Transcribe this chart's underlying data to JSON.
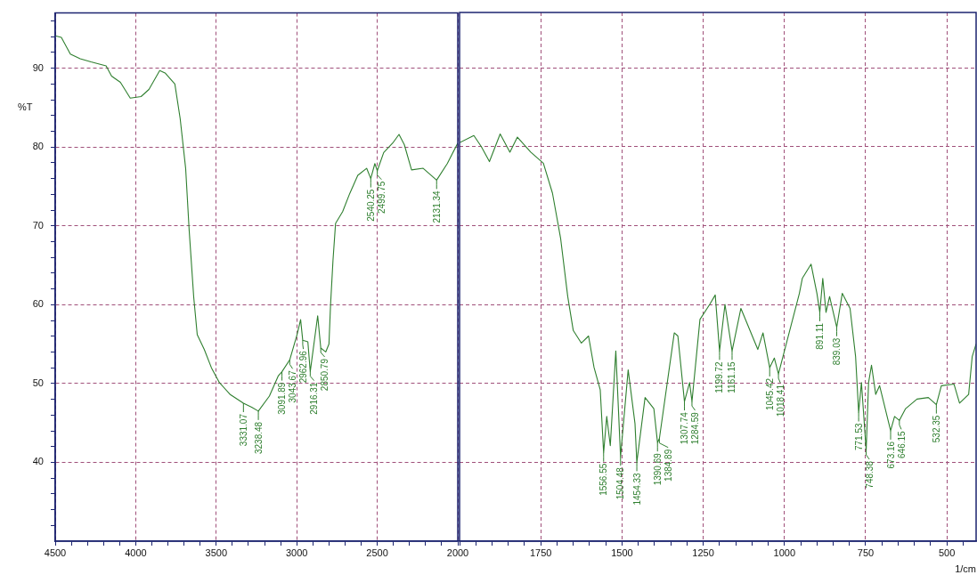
{
  "chart_data": [
    {
      "type": "line",
      "ylabel": "%T",
      "xlim": [
        4500,
        2000
      ],
      "ylim": [
        30,
        97
      ],
      "xticks": [
        4500,
        {
          "value": 4400,
          "label": null
        },
        {
          "value": 4300,
          "label": null
        },
        {
          "value": 4200,
          "label": null
        },
        {
          "value": 4100,
          "label": null
        },
        4000,
        {
          "value": 3900,
          "label": null
        },
        {
          "value": 3800,
          "label": null
        },
        {
          "value": 3700,
          "label": null
        },
        {
          "value": 3600,
          "label": null
        },
        3500,
        {
          "value": 3400,
          "label": null
        },
        {
          "value": 3300,
          "label": null
        },
        {
          "value": 3200,
          "label": null
        },
        {
          "value": 3100,
          "label": null
        },
        3000,
        {
          "value": 2900,
          "label": null
        },
        {
          "value": 2800,
          "label": null
        },
        {
          "value": 2700,
          "label": null
        },
        {
          "value": 2600,
          "label": null
        },
        2500,
        {
          "value": 2400,
          "label": null
        },
        {
          "value": 2300,
          "label": null
        },
        {
          "value": 2200,
          "label": null
        },
        {
          "value": 2100,
          "label": null
        },
        2000
      ],
      "yticks": [
        {
          "value": 32,
          "label": null
        },
        {
          "value": 34,
          "label": null
        },
        {
          "value": 36,
          "label": null
        },
        {
          "value": 38,
          "label": null
        },
        40,
        {
          "value": 42,
          "label": null
        },
        {
          "value": 44,
          "label": null
        },
        {
          "value": 46,
          "label": null
        },
        {
          "value": 48,
          "label": null
        },
        50,
        {
          "value": 52,
          "label": null
        },
        {
          "value": 54,
          "label": null
        },
        {
          "value": 56,
          "label": null
        },
        {
          "value": 58,
          "label": null
        },
        60,
        {
          "value": 62,
          "label": null
        },
        {
          "value": 64,
          "label": null
        },
        {
          "value": 66,
          "label": null
        },
        {
          "value": 68,
          "label": null
        },
        70,
        {
          "value": 72,
          "label": null
        },
        {
          "value": 74,
          "label": null
        },
        {
          "value": 76,
          "label": null
        },
        {
          "value": 78,
          "label": null
        },
        80,
        {
          "value": 82,
          "label": null
        },
        {
          "value": 84,
          "label": null
        },
        {
          "value": 86,
          "label": null
        },
        {
          "value": 88,
          "label": null
        },
        90,
        {
          "value": 92,
          "label": null
        },
        {
          "value": 94,
          "label": null
        },
        {
          "value": 96,
          "label": null
        }
      ],
      "grid": true,
      "legend": false,
      "series": [
        {
          "color": "#2f7f2f",
          "x": [
            4500,
            4462,
            4406,
            4345,
            4278,
            4184,
            4150,
            4095,
            4034,
            3967,
            3918,
            3851,
            3818,
            3757,
            3724,
            3690,
            3668,
            3640,
            3618,
            3574,
            3530,
            3480,
            3413,
            3331.07,
            3280,
            3238.48,
            3170,
            3114,
            3091.89,
            3043.67,
            2998,
            2976,
            2962.96,
            2931,
            2916.31,
            2870,
            2850.79,
            2820,
            2800,
            2790,
            2775,
            2759,
            2715,
            2671,
            2621,
            2566,
            2540.25,
            2515,
            2499.75,
            2460,
            2404,
            2365,
            2332,
            2287,
            2215,
            2131.34,
            2065,
            2000
          ],
          "values": [
            94.1,
            93.9,
            91.8,
            91.2,
            90.8,
            90.3,
            89,
            88.2,
            86.2,
            86.4,
            87.3,
            89.7,
            89.4,
            88,
            83.6,
            77.3,
            69.4,
            61,
            56.2,
            54.3,
            52,
            50.1,
            48.6,
            47.5,
            47,
            46.5,
            48.4,
            51,
            51.5,
            53,
            56.2,
            58.1,
            55.5,
            55.3,
            51.5,
            58.6,
            54.5,
            54,
            55,
            60,
            65.6,
            70.3,
            71.8,
            74.1,
            76.4,
            77.3,
            76,
            77.9,
            77,
            79.3,
            80.5,
            81.6,
            80.3,
            77.1,
            77.3,
            75.8,
            77.9,
            80.5
          ]
        }
      ],
      "annotations": [
        {
          "text": "3331.07",
          "x": 3331.07,
          "y": 47.5
        },
        {
          "text": "3238.48",
          "x": 3238.48,
          "y": 46.5
        },
        {
          "text": "3091.89",
          "x": 3091.89,
          "y": 51.5
        },
        {
          "text": "3043.67",
          "x": 3043.67,
          "y": 53
        },
        {
          "text": "2962.96",
          "x": 2962.96,
          "y": 55.5
        },
        {
          "text": "2916.31",
          "x": 2916.31,
          "y": 51.5
        },
        {
          "text": "2850.79",
          "x": 2850.79,
          "y": 54.5
        },
        {
          "text": "2540.25",
          "x": 2540.25,
          "y": 76
        },
        {
          "text": "2499.75",
          "x": 2499.75,
          "y": 77
        },
        {
          "text": "2131.34",
          "x": 2131.34,
          "y": 75.8
        }
      ]
    },
    {
      "type": "line",
      "xlabel": "1/cm",
      "xlim": [
        2000,
        410
      ],
      "ylim": [
        30,
        97
      ],
      "tick_labels": "x",
      "xticks": [
        {
          "value": 2000,
          "label": null
        },
        {
          "value": 1950,
          "label": null
        },
        {
          "value": 1900,
          "label": null
        },
        {
          "value": 1850,
          "label": null
        },
        {
          "value": 1800,
          "label": null
        },
        1750,
        {
          "value": 1700,
          "label": null
        },
        {
          "value": 1650,
          "label": null
        },
        {
          "value": 1600,
          "label": null
        },
        {
          "value": 1550,
          "label": null
        },
        1500,
        {
          "value": 1450,
          "label": null
        },
        {
          "value": 1400,
          "label": null
        },
        {
          "value": 1350,
          "label": null
        },
        {
          "value": 1300,
          "label": null
        },
        1250,
        {
          "value": 1200,
          "label": null
        },
        {
          "value": 1150,
          "label": null
        },
        {
          "value": 1100,
          "label": null
        },
        {
          "value": 1050,
          "label": null
        },
        1000,
        {
          "value": 950,
          "label": null
        },
        {
          "value": 900,
          "label": null
        },
        {
          "value": 850,
          "label": null
        },
        {
          "value": 800,
          "label": null
        },
        750,
        {
          "value": 700,
          "label": null
        },
        {
          "value": 650,
          "label": null
        },
        {
          "value": 600,
          "label": null
        },
        {
          "value": 550,
          "label": null
        },
        500,
        {
          "value": 450,
          "label": null
        }
      ],
      "yticks": [
        40,
        50,
        60,
        70,
        80,
        90
      ],
      "grid": true,
      "legend": false,
      "series": [
        {
          "color": "#2f7f2f",
          "x": [
            2000,
            1956,
            1933,
            1908,
            1875,
            1845,
            1822,
            1781,
            1742,
            1714,
            1689,
            1667,
            1650,
            1625,
            1603,
            1586,
            1567,
            1556.55,
            1547,
            1536,
            1519,
            1504.48,
            1481,
            1460,
            1454.33,
            1429,
            1402,
            1390.69,
            1384.89,
            1339,
            1328,
            1307.74,
            1292,
            1284.59,
            1260,
            1230,
            1213,
            1199.72,
            1183,
            1161.15,
            1134,
            1082,
            1066,
            1045.42,
            1031,
            1018.41,
            954,
            945,
            918,
            900,
            891.11,
            882,
            872,
            861,
            839.03,
            822,
            798,
            781,
            771.53,
            763,
            748.38,
            741,
            732,
            719,
            707,
            673.16,
            661,
            646.15,
            627,
            592,
            557,
            532.35,
            517,
            478,
            461,
            433,
            422,
            410
          ],
          "values": [
            80.5,
            81.4,
            80,
            78.1,
            81.6,
            79.3,
            81.2,
            79.3,
            77.9,
            74.1,
            68.4,
            61,
            56.7,
            55.1,
            56,
            52,
            49.2,
            41.2,
            45.8,
            42.1,
            54.1,
            40.7,
            51.7,
            44.9,
            40,
            48.2,
            46.8,
            42.5,
            43,
            56.4,
            56,
            47.7,
            50.1,
            47.7,
            58.1,
            60,
            61.2,
            54.1,
            60,
            54.1,
            59.5,
            54.3,
            56.4,
            52,
            53.2,
            51.2,
            61.4,
            63.3,
            65.1,
            61.4,
            59,
            63.3,
            59,
            61,
            57.1,
            61.4,
            59.5,
            53.4,
            46.3,
            50.1,
            41.5,
            50.1,
            52.3,
            48.6,
            49.7,
            44,
            45.8,
            45.3,
            46.8,
            48,
            48.2,
            47.3,
            49.7,
            49.9,
            47.5,
            48.6,
            53.4,
            55
          ]
        }
      ],
      "annotations": [
        {
          "text": "1556.55",
          "x": 1556.55,
          "y": 41.2
        },
        {
          "text": "1504.48",
          "x": 1504.48,
          "y": 40.7
        },
        {
          "text": "1454.33",
          "x": 1454.33,
          "y": 40
        },
        {
          "text": "1390.69",
          "x": 1390.69,
          "y": 42.5
        },
        {
          "text": "1384.89",
          "x": 1384.89,
          "y": 43
        },
        {
          "text": "1307.74",
          "x": 1307.74,
          "y": 47.7
        },
        {
          "text": "1284.59",
          "x": 1284.59,
          "y": 47.7
        },
        {
          "text": "1199.72",
          "x": 1199.72,
          "y": 54.1
        },
        {
          "text": "1161.15",
          "x": 1161.15,
          "y": 54.1
        },
        {
          "text": "1045.42",
          "x": 1045.42,
          "y": 52
        },
        {
          "text": "1018.41",
          "x": 1018.41,
          "y": 51.2
        },
        {
          "text": "891.11",
          "x": 891.11,
          "y": 59
        },
        {
          "text": "839.03",
          "x": 839.03,
          "y": 57.1
        },
        {
          "text": "771.53",
          "x": 771.53,
          "y": 46.3
        },
        {
          "text": "748.38",
          "x": 748.38,
          "y": 41.5
        },
        {
          "text": "673.16",
          "x": 673.16,
          "y": 44
        },
        {
          "text": "646.15",
          "x": 646.15,
          "y": 45.3
        },
        {
          "text": "532.35",
          "x": 532.35,
          "y": 47.3
        }
      ]
    }
  ]
}
